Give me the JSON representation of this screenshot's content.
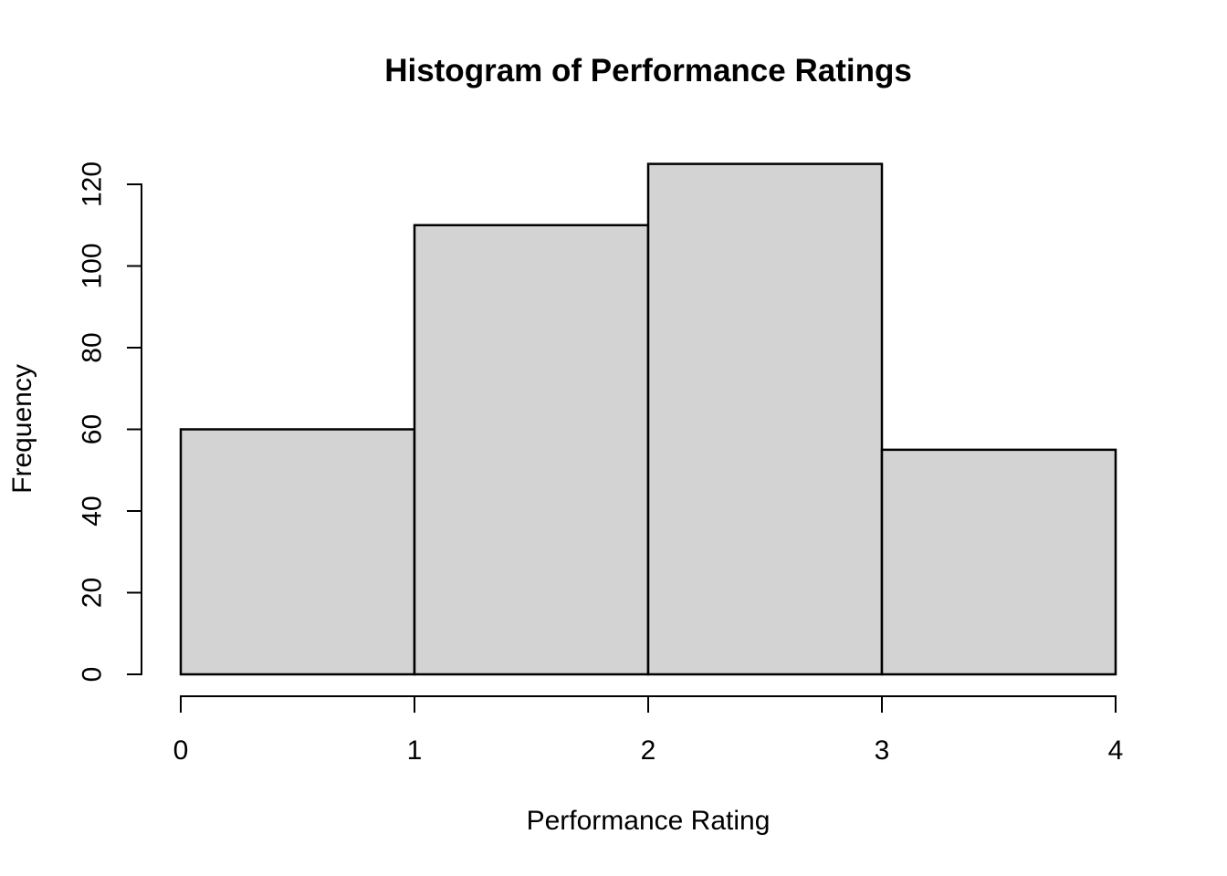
{
  "chart_data": {
    "type": "bar",
    "subtype": "histogram",
    "title": "Histogram of Performance Ratings",
    "xlabel": "Performance Rating",
    "ylabel": "Frequency",
    "breaks": [
      0,
      1,
      2,
      3,
      4
    ],
    "values": [
      60,
      110,
      125,
      55
    ],
    "x_ticks": [
      "0",
      "1",
      "2",
      "3",
      "4"
    ],
    "y_ticks": [
      "0",
      "20",
      "40",
      "60",
      "80",
      "100",
      "120"
    ],
    "xlim": [
      0,
      4
    ],
    "ylim": [
      0,
      125
    ],
    "grid": false,
    "legend": "none",
    "bar_fill_color": "#d3d3d3",
    "bar_border_color": "#000000",
    "axis_color": "#000000",
    "background_color": "#ffffff"
  }
}
